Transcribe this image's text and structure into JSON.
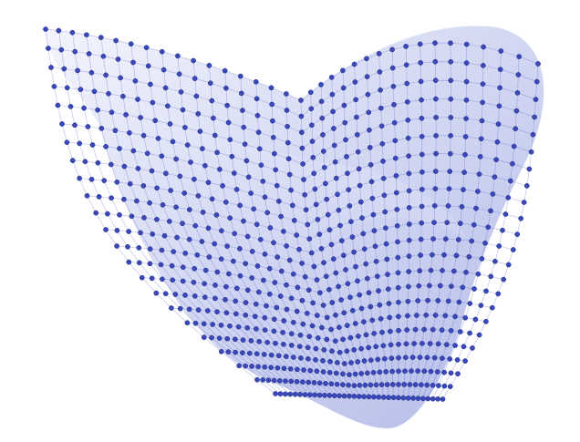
{
  "figure": {
    "title": "",
    "subject": "mesh-surface",
    "colors": {
      "background": "#ffffff",
      "surface_light": "#eef0fb",
      "surface_mid": "#c8cdef",
      "surface_shadow": "#9aa3de",
      "node": "#3b48b8",
      "node_stroke": "#1d2a8a",
      "grid_line": "#5560c8"
    },
    "icon": "mesh-surface-icon"
  }
}
